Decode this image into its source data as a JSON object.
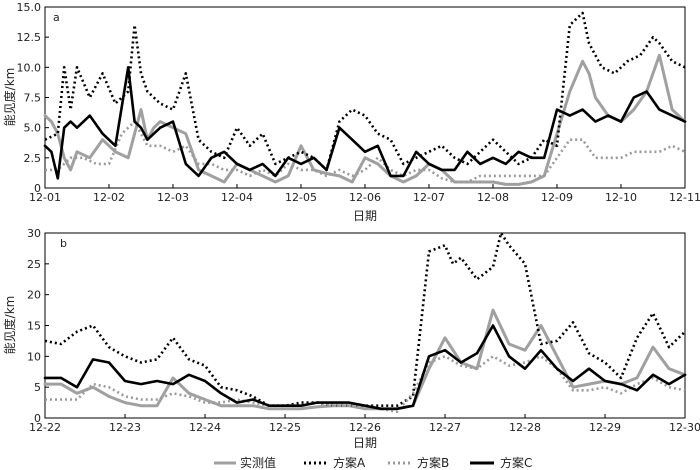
{
  "legend": [
    {
      "label": "实测值",
      "color": "#a0a0a0",
      "dash": "solid",
      "width": 3
    },
    {
      "label": "方案A",
      "color": "#000000",
      "dash": "dotted",
      "width": 3
    },
    {
      "label": "方案B",
      "color": "#9a9a9a",
      "dash": "dotted",
      "width": 3
    },
    {
      "label": "方案C",
      "color": "#000000",
      "dash": "solid",
      "width": 3
    }
  ],
  "chart_data": [
    {
      "type": "line",
      "panel_label": "a",
      "xlabel": "日期",
      "ylabel": "能见度/km",
      "x_tick_labels": [
        "12-01",
        "12-02",
        "12-03",
        "12-04",
        "12-05",
        "12-06",
        "12-07",
        "12-08",
        "12-09",
        "12-10",
        "12-11"
      ],
      "xlim": [
        0,
        10
      ],
      "ylim": [
        0,
        15
      ],
      "y_ticks": [
        "0",
        "2.5",
        "5.0",
        "7.5",
        "10.0",
        "12.5",
        "15.0"
      ],
      "y_tick_values": [
        0,
        2.5,
        5,
        7.5,
        10,
        12.5,
        15
      ],
      "series": [
        {
          "name": "实测值",
          "x": [
            0,
            0.1,
            0.2,
            0.3,
            0.4,
            0.5,
            0.7,
            0.9,
            1.1,
            1.3,
            1.5,
            1.6,
            1.7,
            1.8,
            2.0,
            2.2,
            2.4,
            2.6,
            2.8,
            3.0,
            3.2,
            3.4,
            3.6,
            3.8,
            4.0,
            4.2,
            4.4,
            4.6,
            4.8,
            5.0,
            5.2,
            5.4,
            5.6,
            5.8,
            6.0,
            6.2,
            6.4,
            6.6,
            6.8,
            7.0,
            7.2,
            7.4,
            7.6,
            7.8,
            8.0,
            8.2,
            8.4,
            8.5,
            8.6,
            8.8,
            9.0,
            9.2,
            9.4,
            9.6,
            9.8,
            10.0
          ],
          "y": [
            6.0,
            5.5,
            4.5,
            2.5,
            1.5,
            3.0,
            2.5,
            4.0,
            3.0,
            2.5,
            6.5,
            4.0,
            5.0,
            5.5,
            5.0,
            4.5,
            1.5,
            1.0,
            0.5,
            2.0,
            1.5,
            1.0,
            0.5,
            1.0,
            3.5,
            1.5,
            1.2,
            1.0,
            0.5,
            2.5,
            2.0,
            1.0,
            0.5,
            1.0,
            2.0,
            1.5,
            0.5,
            0.5,
            0.5,
            0.5,
            0.3,
            0.3,
            0.5,
            1.0,
            4.5,
            8.0,
            10.5,
            9.5,
            7.5,
            6.0,
            5.5,
            6.5,
            8.0,
            11.0,
            6.5,
            5.5
          ]
        },
        {
          "name": "方案A",
          "x": [
            0,
            0.2,
            0.3,
            0.4,
            0.5,
            0.7,
            0.9,
            1.1,
            1.3,
            1.4,
            1.5,
            1.6,
            1.8,
            2.0,
            2.2,
            2.4,
            2.6,
            2.8,
            3.0,
            3.2,
            3.4,
            3.6,
            3.8,
            4.0,
            4.2,
            4.4,
            4.6,
            4.8,
            5.0,
            5.2,
            5.4,
            5.6,
            5.8,
            6.0,
            6.2,
            6.4,
            6.6,
            6.8,
            7.0,
            7.2,
            7.4,
            7.6,
            7.8,
            8.0,
            8.2,
            8.4,
            8.5,
            8.7,
            8.9,
            9.1,
            9.3,
            9.5,
            9.6,
            9.8,
            10.0
          ],
          "y": [
            4.0,
            4.5,
            10.0,
            6.5,
            10.0,
            7.5,
            9.5,
            7.0,
            8.0,
            13.5,
            9.5,
            8.0,
            7.0,
            6.5,
            9.5,
            4.0,
            3.0,
            2.5,
            5.0,
            3.5,
            4.5,
            2.0,
            2.5,
            3.0,
            2.5,
            1.5,
            5.5,
            6.5,
            6.0,
            4.5,
            4.0,
            2.0,
            2.5,
            3.0,
            3.5,
            2.5,
            2.0,
            3.0,
            4.0,
            3.0,
            2.0,
            2.5,
            4.0,
            3.5,
            13.5,
            14.5,
            12.0,
            10.0,
            9.5,
            10.5,
            11.0,
            12.5,
            12.0,
            10.5,
            10.0
          ]
        },
        {
          "name": "方案B",
          "x": [
            0,
            0.2,
            0.4,
            0.6,
            0.8,
            1.0,
            1.2,
            1.4,
            1.6,
            1.8,
            2.0,
            2.2,
            2.4,
            2.6,
            2.8,
            3.0,
            3.2,
            3.4,
            3.6,
            3.8,
            4.0,
            4.2,
            4.4,
            4.6,
            4.8,
            5.0,
            5.2,
            5.4,
            5.6,
            5.8,
            6.0,
            6.2,
            6.4,
            6.6,
            6.8,
            7.0,
            7.2,
            7.4,
            7.6,
            7.8,
            8.0,
            8.2,
            8.4,
            8.6,
            8.8,
            9.0,
            9.2,
            9.4,
            9.6,
            9.8,
            10.0
          ],
          "y": [
            1.5,
            1.5,
            2.5,
            2.5,
            2.0,
            2.0,
            4.5,
            5.5,
            3.5,
            3.5,
            3.0,
            3.5,
            2.0,
            2.0,
            1.5,
            1.5,
            1.0,
            1.5,
            1.0,
            2.0,
            1.5,
            1.5,
            1.0,
            1.5,
            1.0,
            1.5,
            2.5,
            1.5,
            1.0,
            1.5,
            1.5,
            0.8,
            0.5,
            0.5,
            1.0,
            1.0,
            1.0,
            1.0,
            1.0,
            1.0,
            2.5,
            4.0,
            4.0,
            2.5,
            2.5,
            2.5,
            3.0,
            3.0,
            3.0,
            3.5,
            3.0
          ]
        },
        {
          "name": "方案C",
          "x": [
            0,
            0.1,
            0.2,
            0.3,
            0.4,
            0.5,
            0.7,
            0.9,
            1.1,
            1.3,
            1.4,
            1.5,
            1.6,
            1.8,
            2.0,
            2.2,
            2.4,
            2.6,
            2.8,
            3.0,
            3.2,
            3.4,
            3.6,
            3.8,
            4.0,
            4.2,
            4.4,
            4.6,
            4.8,
            5.0,
            5.2,
            5.4,
            5.6,
            5.8,
            6.0,
            6.2,
            6.4,
            6.6,
            6.8,
            7.0,
            7.2,
            7.4,
            7.6,
            7.8,
            8.0,
            8.2,
            8.4,
            8.6,
            8.8,
            9.0,
            9.2,
            9.4,
            9.6,
            9.8,
            10.0
          ],
          "y": [
            3.5,
            3.0,
            0.8,
            5.0,
            5.5,
            5.0,
            6.0,
            4.5,
            3.5,
            10.0,
            5.5,
            5.0,
            4.0,
            5.0,
            5.5,
            2.0,
            1.0,
            2.5,
            3.0,
            2.0,
            1.5,
            2.0,
            1.0,
            2.5,
            2.0,
            2.5,
            1.5,
            5.0,
            4.0,
            3.0,
            3.5,
            1.0,
            1.0,
            3.0,
            2.0,
            1.5,
            1.5,
            3.0,
            2.0,
            2.5,
            2.0,
            3.0,
            2.5,
            2.5,
            6.5,
            6.0,
            6.5,
            5.5,
            6.0,
            5.5,
            7.5,
            8.0,
            6.5,
            6.0,
            5.5
          ]
        }
      ]
    },
    {
      "type": "line",
      "panel_label": "b",
      "xlabel": "日期",
      "ylabel": "能见度/km",
      "x_tick_labels": [
        "12-22",
        "12-23",
        "12-24",
        "12-25",
        "12-26",
        "12-27",
        "12-28",
        "12-29",
        "12-30"
      ],
      "xlim": [
        0,
        8
      ],
      "ylim": [
        0,
        30
      ],
      "y_ticks": [
        "0",
        "5",
        "10",
        "15",
        "20",
        "25",
        "30"
      ],
      "y_tick_values": [
        0,
        5,
        10,
        15,
        20,
        25,
        30
      ],
      "series": [
        {
          "name": "实测值",
          "x": [
            0,
            0.2,
            0.4,
            0.6,
            0.8,
            1.0,
            1.2,
            1.4,
            1.6,
            1.8,
            2.0,
            2.2,
            2.4,
            2.6,
            2.8,
            3.0,
            3.2,
            3.4,
            3.6,
            3.8,
            4.0,
            4.2,
            4.4,
            4.6,
            4.8,
            5.0,
            5.2,
            5.4,
            5.6,
            5.8,
            6.0,
            6.2,
            6.4,
            6.6,
            6.8,
            7.0,
            7.2,
            7.4,
            7.6,
            7.8,
            8.0
          ],
          "y": [
            5.5,
            5.5,
            4.0,
            5.0,
            3.5,
            2.5,
            2.0,
            2.0,
            6.5,
            4.0,
            3.0,
            2.0,
            2.0,
            2.0,
            1.5,
            1.5,
            1.5,
            1.8,
            2.0,
            2.0,
            1.5,
            1.5,
            1.5,
            2.0,
            8.0,
            13.0,
            9.0,
            8.0,
            17.5,
            12.0,
            11.0,
            15.0,
            10.0,
            5.0,
            5.5,
            6.0,
            5.5,
            6.5,
            11.5,
            8.0,
            7.0
          ]
        },
        {
          "name": "方案A",
          "x": [
            0,
            0.2,
            0.4,
            0.6,
            0.8,
            1.0,
            1.2,
            1.4,
            1.6,
            1.8,
            2.0,
            2.2,
            2.4,
            2.6,
            2.8,
            3.0,
            3.2,
            3.4,
            3.6,
            3.8,
            4.0,
            4.2,
            4.4,
            4.6,
            4.8,
            5.0,
            5.1,
            5.2,
            5.4,
            5.6,
            5.7,
            5.8,
            6.0,
            6.2,
            6.4,
            6.6,
            6.8,
            7.0,
            7.2,
            7.4,
            7.6,
            7.8,
            8.0
          ],
          "y": [
            12.5,
            12.0,
            14.0,
            15.0,
            11.5,
            10.0,
            9.0,
            9.5,
            13.0,
            9.5,
            8.5,
            5.0,
            4.5,
            3.5,
            2.0,
            2.0,
            2.5,
            2.5,
            2.0,
            2.0,
            2.0,
            2.0,
            2.0,
            3.5,
            27.0,
            28.0,
            25.0,
            26.0,
            22.5,
            24.5,
            30.0,
            28.0,
            25.0,
            12.0,
            12.5,
            15.5,
            10.5,
            9.0,
            6.5,
            13.0,
            17.0,
            11.5,
            14.0
          ]
        },
        {
          "name": "方案B",
          "x": [
            0,
            0.2,
            0.4,
            0.6,
            0.8,
            1.0,
            1.2,
            1.4,
            1.6,
            1.8,
            2.0,
            2.2,
            2.4,
            2.6,
            2.8,
            3.0,
            3.2,
            3.4,
            3.6,
            3.8,
            4.0,
            4.2,
            4.4,
            4.6,
            4.8,
            5.0,
            5.2,
            5.4,
            5.6,
            5.8,
            6.0,
            6.2,
            6.4,
            6.6,
            6.8,
            7.0,
            7.2,
            7.4,
            7.6,
            7.8,
            8.0
          ],
          "y": [
            3.0,
            3.0,
            3.0,
            5.5,
            5.0,
            3.5,
            3.0,
            3.0,
            4.0,
            3.5,
            2.5,
            2.5,
            3.0,
            2.5,
            2.0,
            2.0,
            2.0,
            2.5,
            2.0,
            2.0,
            2.0,
            1.5,
            1.0,
            4.0,
            9.0,
            10.0,
            8.5,
            8.0,
            10.0,
            8.5,
            9.0,
            10.0,
            8.0,
            4.5,
            4.5,
            5.0,
            4.0,
            5.5,
            6.5,
            5.0,
            4.5
          ]
        },
        {
          "name": "方案C",
          "x": [
            0,
            0.2,
            0.4,
            0.6,
            0.8,
            1.0,
            1.2,
            1.4,
            1.6,
            1.8,
            2.0,
            2.2,
            2.4,
            2.6,
            2.8,
            3.0,
            3.2,
            3.4,
            3.6,
            3.8,
            4.0,
            4.2,
            4.4,
            4.6,
            4.8,
            5.0,
            5.2,
            5.4,
            5.6,
            5.8,
            6.0,
            6.2,
            6.4,
            6.6,
            6.8,
            7.0,
            7.2,
            7.4,
            7.6,
            7.8,
            8.0
          ],
          "y": [
            6.5,
            6.5,
            5.0,
            9.5,
            9.0,
            6.0,
            5.5,
            6.0,
            5.5,
            7.0,
            6.0,
            4.0,
            2.5,
            3.0,
            2.0,
            2.0,
            2.0,
            2.5,
            2.5,
            2.5,
            2.0,
            1.5,
            1.5,
            2.0,
            10.0,
            11.0,
            9.0,
            10.5,
            15.0,
            10.0,
            8.0,
            11.0,
            8.0,
            6.0,
            8.0,
            6.0,
            5.5,
            4.5,
            7.0,
            5.5,
            7.0
          ]
        }
      ]
    }
  ]
}
